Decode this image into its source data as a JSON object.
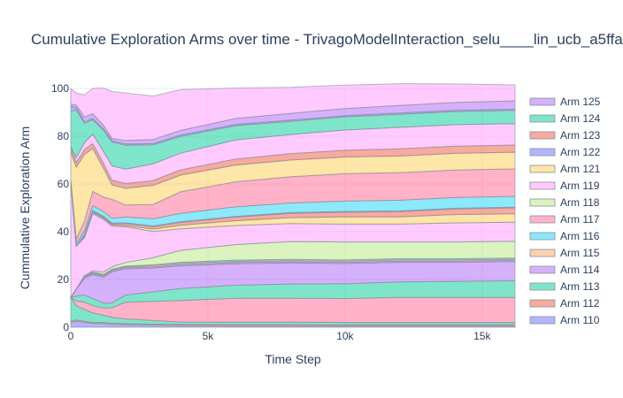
{
  "chart_data": {
    "type": "area",
    "stacked": true,
    "title": "Cumulative Exploration Arms over time - TrivagoModelInteraction_selu____lin_ucb_a5ffa",
    "xlabel": "Time Step",
    "ylabel": "Cummulative Exploration Arm",
    "xlim": [
      0,
      16200
    ],
    "ylim": [
      0,
      100
    ],
    "x_ticks": [
      0,
      5000,
      10000,
      15000
    ],
    "x_tick_labels": [
      "0",
      "5k",
      "10k",
      "15k"
    ],
    "y_ticks": [
      0,
      20,
      40,
      60,
      80,
      100
    ],
    "y_tick_labels": [
      "0",
      "20",
      "40",
      "60",
      "80",
      "100"
    ],
    "grid": true,
    "legend_position": "right",
    "x": [
      0,
      200,
      500,
      800,
      1200,
      1500,
      2000,
      3000,
      4000,
      6000,
      8000,
      10000,
      12000,
      14000,
      16200
    ],
    "series": [
      {
        "name": "Arm 110",
        "color": "#636efa",
        "values": [
          2,
          2.5,
          2,
          1.5,
          1.5,
          1.2,
          1,
          0.8,
          0.7,
          0.6,
          0.6,
          0.5,
          0.5,
          0.5,
          0.5
        ]
      },
      {
        "name": "Arm 112",
        "color": "#ef553b",
        "values": [
          0.5,
          0.5,
          0.5,
          0.5,
          0.5,
          0.5,
          0.5,
          0.5,
          0.5,
          0.5,
          0.5,
          0.5,
          0.5,
          0.5,
          0.5
        ]
      },
      {
        "name": "Arm 113",
        "color": "#00cc96",
        "values": [
          10,
          6,
          5,
          4,
          3,
          2.5,
          2,
          1.5,
          1,
          1,
          1,
          1,
          1,
          1,
          1
        ]
      },
      {
        "name": "Arm 117",
        "color": "#ff6692",
        "values": [
          0,
          2,
          3,
          3,
          3,
          4,
          7,
          8,
          9,
          10,
          10,
          10,
          10.5,
          10.5,
          10.5
        ]
      },
      {
        "name": "Arm 113",
        "color": "#00cc96",
        "values": [
          0,
          2,
          3,
          3,
          2,
          2,
          3,
          4,
          5,
          5.5,
          6,
          6.2,
          6.5,
          6.7,
          7
        ]
      },
      {
        "name": "Arm 114",
        "color": "#ab63fa",
        "values": [
          0,
          3,
          7,
          10,
          11,
          13,
          11,
          10,
          9.5,
          9,
          8.8,
          8.5,
          8.2,
          8,
          8
        ]
      },
      {
        "name": "Arm 125",
        "color": "#ab63fa",
        "values": [
          0,
          0,
          0.5,
          0.5,
          0.5,
          0.5,
          0.5,
          0.5,
          0.5,
          0.5,
          0.5,
          0.5,
          0.5,
          0.5,
          0.5
        ]
      },
      {
        "name": "Arm 115",
        "color": "#ffa15a",
        "values": [
          0,
          0,
          0.3,
          0.3,
          0.3,
          0.3,
          0.3,
          0.5,
          0.5,
          0.5,
          0.5,
          0.5,
          0.5,
          0.5,
          0.5
        ]
      },
      {
        "name": "Arm 116",
        "color": "#19d3f3",
        "values": [
          0,
          0,
          0.3,
          0.3,
          0.3,
          0.3,
          0.3,
          0.3,
          0.5,
          0.5,
          0.5,
          0.5,
          0.5,
          0.5,
          0.5
        ]
      },
      {
        "name": "Arm 118",
        "color": "#b6e880",
        "values": [
          0,
          0,
          0,
          0.5,
          1,
          1,
          1.5,
          3,
          5,
          6.5,
          7.5,
          7.5,
          7,
          7,
          7
        ]
      },
      {
        "name": "Arm 119",
        "color": "#ff97ff",
        "values": [
          48,
          18,
          16,
          24,
          22,
          17,
          15,
          11,
          9,
          8,
          7.5,
          7.5,
          7.5,
          8,
          8
        ]
      },
      {
        "name": "Arm 121",
        "color": "#fecb52",
        "values": [
          0,
          0,
          0.5,
          0.5,
          0.5,
          0.5,
          0.5,
          1,
          1.5,
          2,
          2.5,
          3,
          3,
          3.5,
          3.5
        ]
      },
      {
        "name": "Arm 123",
        "color": "#ef553b",
        "values": [
          0,
          0,
          0.5,
          0.5,
          0.5,
          0.5,
          0.8,
          1,
          1.2,
          1.5,
          1.8,
          2,
          2.2,
          2.3,
          2.5
        ]
      },
      {
        "name": "Arm 122",
        "color": "#636efa",
        "values": [
          0,
          0,
          0.3,
          0.3,
          0.3,
          0.3,
          0.3,
          0.3,
          0.3,
          0.3,
          0.3,
          0.3,
          0.3,
          0.3,
          0.3
        ]
      },
      {
        "name": "Arm 116",
        "color": "#19d3f3",
        "values": [
          1,
          1,
          1.5,
          2,
          2,
          2,
          2.5,
          3,
          3.5,
          4,
          4,
          4.3,
          4.5,
          4.5,
          4.5
        ]
      },
      {
        "name": "Arm 117",
        "color": "#ff6692",
        "values": [
          0,
          2,
          4,
          6,
          6,
          8,
          5,
          6,
          9,
          10.5,
          11,
          11.5,
          11.5,
          11.5,
          11.5
        ]
      },
      {
        "name": "Arm 121",
        "color": "#fecb52",
        "values": [
          12,
          30,
          28,
          18,
          12,
          6,
          7,
          8,
          7,
          7,
          7,
          7,
          7,
          7,
          7
        ]
      },
      {
        "name": "Arm 123",
        "color": "#ef553b",
        "values": [
          2,
          2,
          2,
          2,
          2,
          2,
          2,
          2,
          2.2,
          2.5,
          2.7,
          2.8,
          3,
          3,
          3
        ]
      },
      {
        "name": "Arm 119",
        "color": "#ff97ff",
        "values": [
          0,
          2,
          3,
          4,
          5,
          6,
          6,
          7,
          7,
          8,
          8,
          8.5,
          9,
          9,
          9
        ]
      },
      {
        "name": "Arm 124",
        "color": "#00cc96",
        "values": [
          15,
          20,
          8,
          6,
          9,
          10,
          10,
          8,
          7,
          6,
          5.5,
          5.5,
          5.5,
          5.5,
          5.5
        ]
      },
      {
        "name": "Arm 110",
        "color": "#636efa",
        "values": [
          2,
          1,
          0.6,
          0.5,
          0.5,
          0.5,
          0.5,
          0.5,
          0.5,
          0.5,
          0.5,
          0.5,
          0.5,
          0.5,
          0.5
        ]
      },
      {
        "name": "Arm 125",
        "color": "#ab63fa",
        "values": [
          1,
          1,
          2,
          2,
          1.5,
          1,
          1.5,
          1.7,
          2,
          2.5,
          2.8,
          3,
          3.2,
          3.3,
          3.5
        ]
      },
      {
        "name": "Arm 119",
        "color": "#ff97ff",
        "values": [
          6.5,
          5,
          9.3,
          10.6,
          15.8,
          19.6,
          19.9,
          18.2,
          17.1,
          12.8,
          11,
          9.8,
          9.1,
          7.8,
          6.7
        ]
      }
    ],
    "legend": [
      {
        "name": "Arm 125",
        "color": "#ab63fa"
      },
      {
        "name": "Arm 124",
        "color": "#00cc96"
      },
      {
        "name": "Arm 123",
        "color": "#ef553b"
      },
      {
        "name": "Arm 122",
        "color": "#636efa"
      },
      {
        "name": "Arm 121",
        "color": "#fecb52"
      },
      {
        "name": "Arm 119",
        "color": "#ff97ff"
      },
      {
        "name": "Arm 118",
        "color": "#b6e880"
      },
      {
        "name": "Arm 117",
        "color": "#ff6692"
      },
      {
        "name": "Arm 116",
        "color": "#19d3f3"
      },
      {
        "name": "Arm 115",
        "color": "#ffa15a"
      },
      {
        "name": "Arm 114",
        "color": "#ab63fa"
      },
      {
        "name": "Arm 113",
        "color": "#00cc96"
      },
      {
        "name": "Arm 112",
        "color": "#ef553b"
      },
      {
        "name": "Arm 110",
        "color": "#636efa"
      }
    ]
  }
}
